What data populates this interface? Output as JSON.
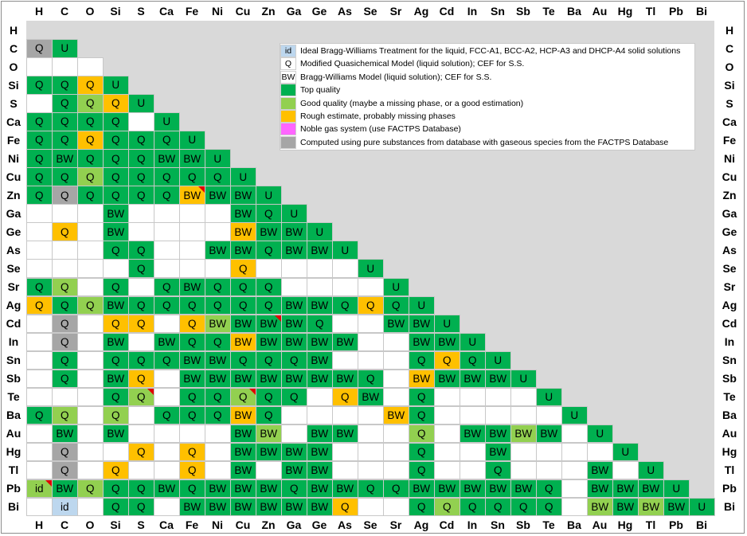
{
  "chart_data": {
    "type": "table",
    "title": "",
    "elements": [
      "H",
      "C",
      "O",
      "Si",
      "S",
      "Ca",
      "Fe",
      "Ni",
      "Cu",
      "Zn",
      "Ga",
      "Ge",
      "As",
      "Se",
      "Sr",
      "Ag",
      "Cd",
      "In",
      "Sn",
      "Sb",
      "Te",
      "Ba",
      "Au",
      "Hg",
      "Tl",
      "Pb",
      "Bi"
    ],
    "colors": {
      "top": "#00b050",
      "good": "#92d050",
      "rough": "#ffc000",
      "noble": "#ff66ff",
      "computed": "#a6a6a6",
      "ideal": "#bdd7ee",
      "blank": "#ffffff",
      "background": "#d9d9d9",
      "flag": "#e00000"
    },
    "legend": [
      {
        "label": "id",
        "text": "Ideal Bragg-Williams Treatment for the liquid, FCC-A1, BCC-A2, HCP-A3 and DHCP-A4 solid solutions",
        "color": "ideal"
      },
      {
        "label": "Q",
        "text": "Modified Quasichemical Model (liquid solution); CEF for S.S.",
        "color": "blank"
      },
      {
        "label": "BW",
        "text": "Bragg-Williams Model (liquid solution); CEF for S.S.",
        "color": "blank"
      },
      {
        "label": "",
        "text": "Top quality",
        "color": "top"
      },
      {
        "label": "",
        "text": "Good quality (maybe a missing phase, or a good estimation)",
        "color": "good"
      },
      {
        "label": "",
        "text": "Rough estimate, probably missing phases",
        "color": "rough"
      },
      {
        "label": "",
        "text": "Noble gas system (use FACTPS Database)",
        "color": "noble"
      },
      {
        "label": "",
        "text": "Computed using pure substances from database with gaseous species from the FACTPS Database",
        "color": "computed"
      }
    ],
    "flags": [
      [
        9,
        6
      ],
      [
        16,
        9
      ],
      [
        20,
        4
      ],
      [
        20,
        8
      ],
      [
        25,
        0
      ]
    ],
    "rows": [
      [],
      [
        "gQ",
        "tU"
      ],
      [
        "",
        "",
        ""
      ],
      [
        "tQ",
        "tQ",
        "oQ",
        "tU"
      ],
      [
        "",
        "tQ",
        "yQ",
        "oQ",
        "tU"
      ],
      [
        "tQ",
        "tQ",
        "tQ",
        "tQ",
        "",
        "tU"
      ],
      [
        "tQ",
        "tQ",
        "oQ",
        "tQ",
        "tQ",
        "tQ",
        "tU"
      ],
      [
        "tQ",
        "tBW",
        "tQ",
        "tQ",
        "tQ",
        "tBW",
        "tBW",
        "tU"
      ],
      [
        "tQ",
        "tQ",
        "yQ",
        "tQ",
        "tQ",
        "tQ",
        "tQ",
        "tQ",
        "tU"
      ],
      [
        "tQ",
        "gQ",
        "tQ",
        "tQ",
        "tQ",
        "tQ",
        "oBW",
        "tBW",
        "tBW",
        "tU"
      ],
      [
        "",
        "",
        "",
        "tBW",
        "",
        "",
        "",
        "",
        "tBW",
        "tQ",
        "tU"
      ],
      [
        "",
        "oQ",
        "",
        "tBW",
        "",
        "",
        "",
        "",
        "oBW",
        "tBW",
        "tBW",
        "tU"
      ],
      [
        "",
        "",
        "",
        "tQ",
        "tQ",
        "",
        "",
        "tBW",
        "tBW",
        "tQ",
        "tBW",
        "tBW",
        "tU"
      ],
      [
        "",
        "",
        "",
        "",
        "tQ",
        "",
        "",
        "",
        "oQ",
        "",
        "",
        "",
        "",
        "tU"
      ],
      [
        "tQ",
        "yQ",
        "",
        "tQ",
        "",
        "tQ",
        "tBW",
        "tQ",
        "tQ",
        "tQ",
        "",
        "",
        "",
        "",
        "tU"
      ],
      [
        "oQ",
        "tQ",
        "yQ",
        "tBW",
        "tQ",
        "tQ",
        "tQ",
        "tQ",
        "tQ",
        "tQ",
        "tBW",
        "tBW",
        "tQ",
        "oQ",
        "tQ",
        "tU"
      ],
      [
        "",
        "gQ",
        "",
        "oQ",
        "oQ",
        "",
        "oQ",
        "yBW",
        "tBW",
        "tBW",
        "tBW",
        "tQ",
        "",
        "",
        "tBW",
        "tBW",
        "tU"
      ],
      [
        "",
        "gQ",
        "",
        "tBW",
        "",
        "tBW",
        "tQ",
        "tQ",
        "oBW",
        "tBW",
        "tBW",
        "tBW",
        "tBW",
        "",
        "",
        "tBW",
        "tBW",
        "tU"
      ],
      [
        "",
        "tQ",
        "",
        "tQ",
        "tQ",
        "tQ",
        "tBW",
        "tBW",
        "tQ",
        "tQ",
        "tQ",
        "tBW",
        "",
        "",
        "",
        "tQ",
        "oQ",
        "tQ",
        "tU"
      ],
      [
        "",
        "tQ",
        "",
        "tBW",
        "oQ",
        "",
        "tBW",
        "tBW",
        "tBW",
        "tBW",
        "tBW",
        "tBW",
        "tBW",
        "tQ",
        "",
        "oBW",
        "tBW",
        "tBW",
        "tBW",
        "tU"
      ],
      [
        "",
        "",
        "",
        "tQ",
        "yQ",
        "",
        "tQ",
        "tQ",
        "yQ",
        "tQ",
        "tQ",
        "",
        "oQ",
        "tBW",
        "",
        "tQ",
        "",
        "",
        "",
        "",
        "tU"
      ],
      [
        "tQ",
        "yQ",
        "",
        "yQ",
        "",
        "tQ",
        "tQ",
        "tQ",
        "oBW",
        "tQ",
        "",
        "",
        "",
        "",
        "oBW",
        "tQ",
        "",
        "",
        "",
        "",
        "",
        "tU"
      ],
      [
        "",
        "tBW",
        "",
        "tBW",
        "",
        "",
        "",
        "",
        "tBW",
        "yBW",
        "",
        "tBW",
        "tBW",
        "",
        "",
        "yQ",
        "",
        "tBW",
        "tBW",
        "yBW",
        "tBW",
        "",
        "tU"
      ],
      [
        "",
        "gQ",
        "",
        "",
        "oQ",
        "",
        "oQ",
        "",
        "tBW",
        "tBW",
        "tBW",
        "tBW",
        "",
        "",
        "",
        "tQ",
        "",
        "",
        "tBW",
        "",
        "",
        "",
        "",
        "tU"
      ],
      [
        "",
        "gQ",
        "",
        "oQ",
        "",
        "",
        "oQ",
        "",
        "tBW",
        "",
        "tBW",
        "tBW",
        "",
        "",
        "",
        "tQ",
        "",
        "",
        "tQ",
        "",
        "",
        "",
        "tBW",
        "",
        "tU"
      ],
      [
        "yid",
        "tBW",
        "yQ",
        "tQ",
        "tQ",
        "tBW",
        "tQ",
        "tBW",
        "tBW",
        "tBW",
        "tQ",
        "tBW",
        "tBW",
        "tQ",
        "tQ",
        "tBW",
        "tBW",
        "tBW",
        "tBW",
        "tBW",
        "tQ",
        "",
        "tBW",
        "tBW",
        "tBW",
        "tU"
      ],
      [
        "",
        "iid",
        "",
        "tQ",
        "tQ",
        "",
        "tBW",
        "tBW",
        "tBW",
        "tBW",
        "tBW",
        "tBW",
        "oQ",
        "",
        "",
        "tQ",
        "yQ",
        "tQ",
        "tQ",
        "tQ",
        "tQ",
        "",
        "yBW",
        "tBW",
        "yBW",
        "tBW",
        "tU"
      ]
    ]
  }
}
